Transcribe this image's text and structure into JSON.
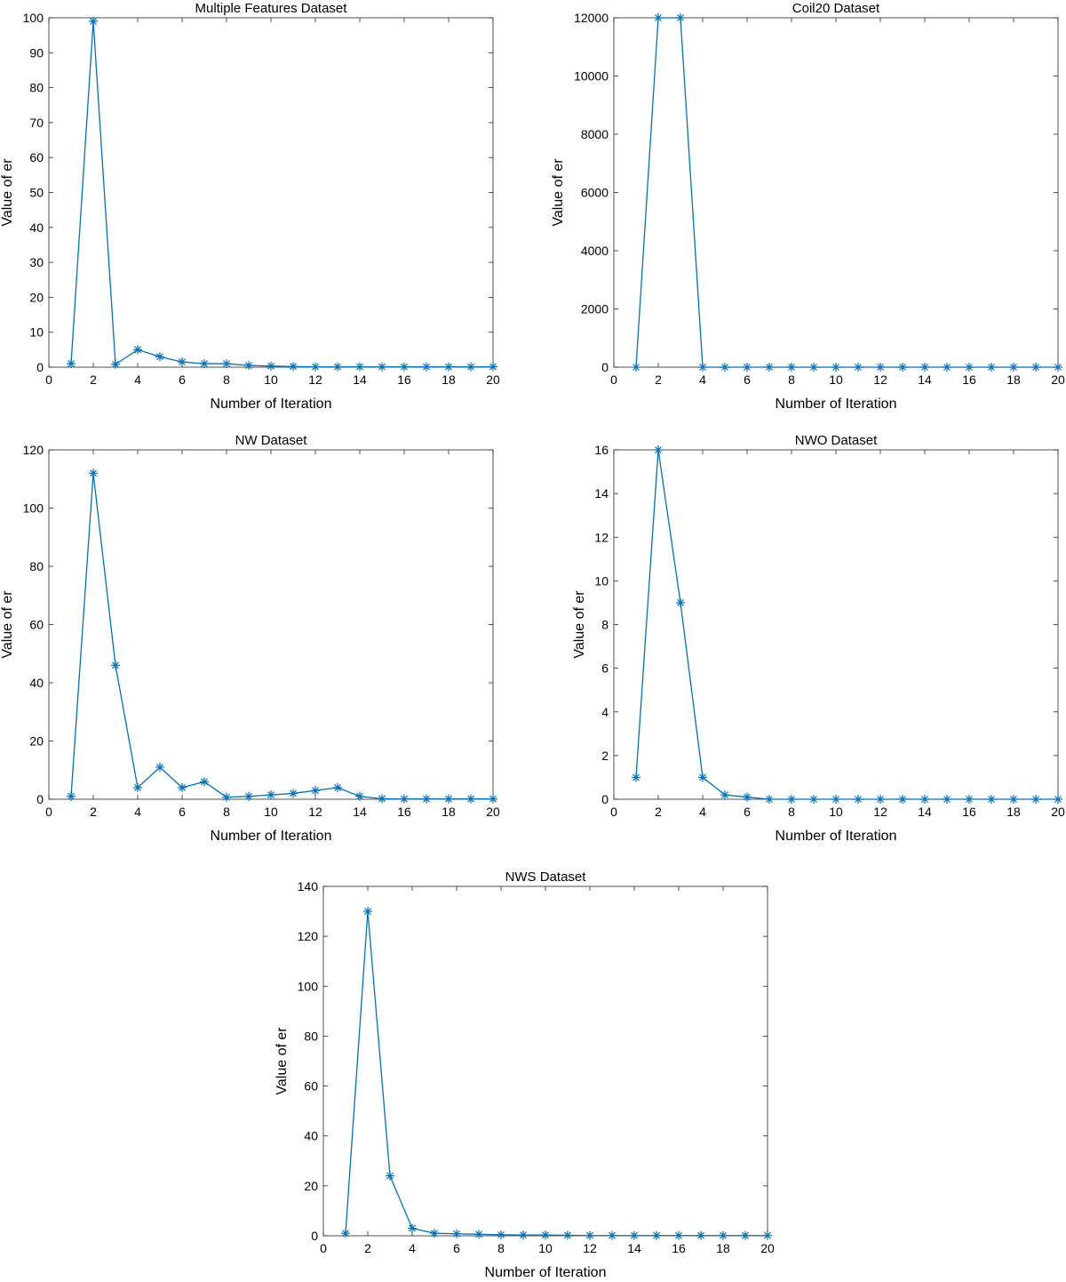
{
  "chart_data": [
    {
      "type": "line",
      "title": "Multiple Features Dataset",
      "xlabel": "Number of Iteration",
      "ylabel": "Value of er",
      "xlim": [
        0,
        20
      ],
      "ylim": [
        0,
        100
      ],
      "xticks": [
        0,
        2,
        4,
        6,
        8,
        10,
        12,
        14,
        16,
        18,
        20
      ],
      "yticks": [
        0,
        10,
        20,
        30,
        40,
        50,
        60,
        70,
        80,
        90,
        100
      ],
      "grid": false,
      "color": "#0072BD",
      "marker": "asterisk",
      "series": [
        {
          "x": [
            1,
            2,
            3,
            4,
            5,
            6,
            7,
            8,
            9,
            10,
            11,
            12,
            13,
            14,
            15,
            16,
            17,
            18,
            19,
            20
          ],
          "y": [
            1,
            99,
            0.8,
            5,
            3,
            1.5,
            1,
            1,
            0.5,
            0.3,
            0.2,
            0.1,
            0.1,
            0.1,
            0.1,
            0.1,
            0.1,
            0.1,
            0.1,
            0.1
          ]
        }
      ]
    },
    {
      "type": "line",
      "title": "Coil20 Dataset",
      "xlabel": "Number of Iteration",
      "ylabel": "Value of er",
      "xlim": [
        0,
        20
      ],
      "ylim": [
        0,
        12000
      ],
      "xticks": [
        0,
        2,
        4,
        6,
        8,
        10,
        12,
        14,
        16,
        18,
        20
      ],
      "yticks": [
        0,
        2000,
        4000,
        6000,
        8000,
        10000,
        12000
      ],
      "grid": false,
      "color": "#0072BD",
      "marker": "asterisk",
      "series": [
        {
          "x": [
            1,
            2,
            3,
            4,
            5,
            6,
            7,
            8,
            9,
            10,
            11,
            12,
            13,
            14,
            15,
            16,
            17,
            18,
            19,
            20
          ],
          "y": [
            0,
            12000,
            12000,
            0,
            0,
            0,
            0,
            0,
            0,
            0,
            0,
            0,
            0,
            0,
            0,
            0,
            0,
            0,
            0,
            0
          ]
        }
      ]
    },
    {
      "type": "line",
      "title": "NW Dataset",
      "xlabel": "Number of Iteration",
      "ylabel": "Value of er",
      "xlim": [
        0,
        20
      ],
      "ylim": [
        0,
        120
      ],
      "xticks": [
        0,
        2,
        4,
        6,
        8,
        10,
        12,
        14,
        16,
        18,
        20
      ],
      "yticks": [
        0,
        20,
        40,
        60,
        80,
        100,
        120
      ],
      "grid": false,
      "color": "#0072BD",
      "marker": "asterisk",
      "series": [
        {
          "x": [
            1,
            2,
            3,
            4,
            5,
            6,
            7,
            8,
            9,
            10,
            11,
            12,
            13,
            14,
            15,
            16,
            17,
            18,
            19,
            20
          ],
          "y": [
            1,
            112,
            46,
            4,
            11,
            4,
            6,
            0.7,
            1,
            1.5,
            2,
            3,
            4,
            1,
            0.2,
            0.1,
            0.1,
            0.1,
            0.1,
            0.1
          ]
        }
      ]
    },
    {
      "type": "line",
      "title": "NWO Dataset",
      "xlabel": "Number of Iteration",
      "ylabel": "Value of er",
      "xlim": [
        0,
        20
      ],
      "ylim": [
        0,
        16
      ],
      "xticks": [
        0,
        2,
        4,
        6,
        8,
        10,
        12,
        14,
        16,
        18,
        20
      ],
      "yticks": [
        0,
        2,
        4,
        6,
        8,
        10,
        12,
        14,
        16
      ],
      "grid": false,
      "color": "#0072BD",
      "marker": "asterisk",
      "series": [
        {
          "x": [
            1,
            2,
            3,
            4,
            5,
            6,
            7,
            8,
            9,
            10,
            11,
            12,
            13,
            14,
            15,
            16,
            17,
            18,
            19,
            20
          ],
          "y": [
            1,
            16,
            9,
            1,
            0.2,
            0.1,
            0,
            0,
            0,
            0,
            0,
            0,
            0,
            0,
            0,
            0,
            0,
            0,
            0,
            0
          ]
        }
      ]
    },
    {
      "type": "line",
      "title": "NWS Dataset",
      "xlabel": "Number of Iteration",
      "ylabel": "Value of er",
      "xlim": [
        0,
        20
      ],
      "ylim": [
        0,
        140
      ],
      "xticks": [
        0,
        2,
        4,
        6,
        8,
        10,
        12,
        14,
        16,
        18,
        20
      ],
      "yticks": [
        0,
        20,
        40,
        60,
        80,
        100,
        120,
        140
      ],
      "grid": false,
      "color": "#0072BD",
      "marker": "asterisk",
      "series": [
        {
          "x": [
            1,
            2,
            3,
            4,
            5,
            6,
            7,
            8,
            9,
            10,
            11,
            12,
            13,
            14,
            15,
            16,
            17,
            18,
            19,
            20
          ],
          "y": [
            1,
            130,
            24,
            3,
            1,
            0.8,
            0.6,
            0.4,
            0.3,
            0.3,
            0.2,
            0.1,
            0.1,
            0.1,
            0.1,
            0.1,
            0.1,
            0.1,
            0.1,
            0.1
          ]
        }
      ]
    }
  ]
}
